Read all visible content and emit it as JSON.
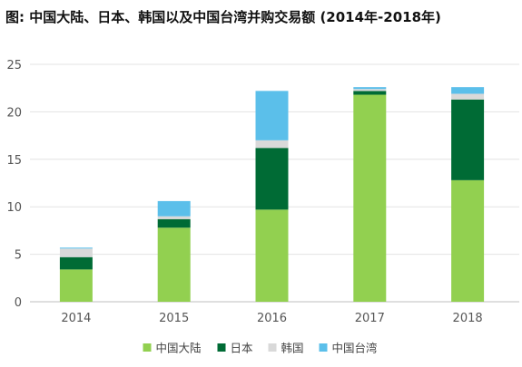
{
  "chart_data": {
    "type": "bar",
    "stacked": true,
    "title": "图: 中国大陆、日本、韩国以及中国台湾并购交易额 (2014年-2018年)",
    "xlabel": "",
    "ylabel": "",
    "categories": [
      "2014",
      "2015",
      "2016",
      "2017",
      "2018"
    ],
    "series": [
      {
        "name": "中国大陆",
        "color": "#92d050",
        "values": [
          3.4,
          7.8,
          9.7,
          21.8,
          12.8
        ]
      },
      {
        "name": "日本",
        "color": "#006b35",
        "values": [
          1.3,
          0.9,
          6.5,
          0.4,
          8.5
        ]
      },
      {
        "name": "韩国",
        "color": "#d9d9d9",
        "values": [
          0.9,
          0.3,
          0.8,
          0.2,
          0.6
        ]
      },
      {
        "name": "中国台湾",
        "color": "#5bbfea",
        "values": [
          0.1,
          1.6,
          5.2,
          0.2,
          0.7
        ]
      }
    ],
    "ylim": [
      0,
      25
    ],
    "yticks": [
      0,
      5,
      10,
      15,
      20,
      25
    ],
    "grid": true,
    "legend_position": "bottom"
  }
}
